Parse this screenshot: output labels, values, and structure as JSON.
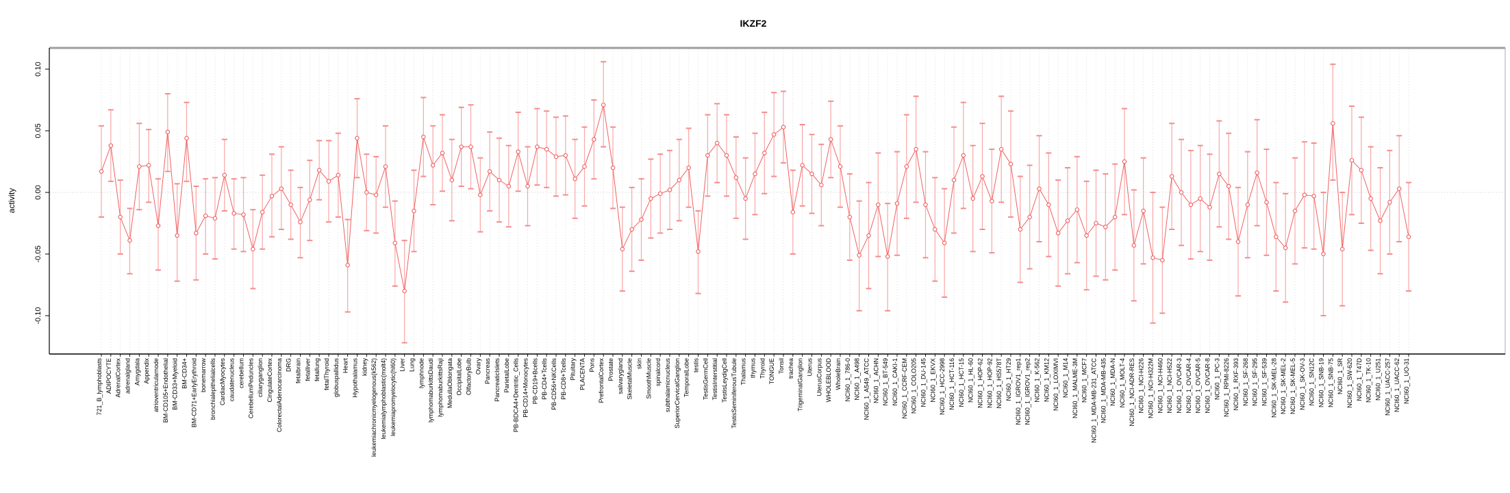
{
  "chart_data": {
    "type": "scatter",
    "subtype": "point-estimates-with-error-bars",
    "title": "IKZF2",
    "xlabel": "",
    "ylabel": "activity",
    "ylim": [
      -0.131,
      0.117
    ],
    "yticks": [
      {
        "v": 0.1,
        "label": "0.10"
      },
      {
        "v": 0.05,
        "label": "0.05"
      },
      {
        "v": 0.0,
        "label": "0.00"
      },
      {
        "v": -0.05,
        "label": "-0.05"
      },
      {
        "v": -0.1,
        "label": "-0.10"
      }
    ],
    "grid": {
      "vertical_dotted_per_category": true,
      "zero_line_dotted": true
    },
    "legend": "none",
    "point_color": "#f15f5f",
    "line_color": "#f15f5f",
    "errorbar_color": "#f8a6a6",
    "errorbar_cap_color": "#f58b8b",
    "categories": [
      "721_B_lymphoblasts",
      "ADIPOCYTE",
      "AdrenalCortex",
      "adrenalgland",
      "Amygdala",
      "Appendix",
      "atrioventricularnode",
      "BM-CD105+Endothelial",
      "BM-CD33+Myeloid",
      "BM-CD34+",
      "BM-CD71+EarlyErythroid",
      "bonemarrow",
      "bronchialepithelialcells",
      "CardiacMyocytes",
      "caudatenucleus",
      "cerebellum",
      "CerebellumPeduncles",
      "ciliaryganglion",
      "CingulateCortex",
      "ColorectalAdenocarcinoma",
      "DRG",
      "fetalbrain",
      "fetalliver",
      "fetallung",
      "fetalThyroid",
      "globuspallidus",
      "Heart",
      "Hypothalamus",
      "kidney",
      "leukemiachronicmyelogenous(k562)",
      "leukemialymphoblastic(molt4)",
      "leukemiapromyelocytic(hl60)",
      "Liver",
      "Lung",
      "lymphnode",
      "lymphomaburkittsDaudi",
      "lymphomaburkittsRaji",
      "MedullaOblongata",
      "OccipitalLobe",
      "OlfactoryBulb",
      "Ovary",
      "Pancreas",
      "PancreaticIslets",
      "ParietalLobe",
      "PB-BDCA4+Dentritic_Cells",
      "PB-CD14+Monocytes",
      "PB-CD19+Bcells",
      "PB-CD4+Tcells",
      "PB-CD56+NKCells",
      "PB-CD8+Tcells",
      "Pituitary",
      "PLACENTA",
      "Pons",
      "PrefrontalCortex",
      "Prostate",
      "salivarygland",
      "SkeletalMuscle",
      "skin",
      "SmoothMuscle",
      "spinalcord",
      "subthalamicnucleus",
      "SuperiorCervicalGanglion",
      "TemporalLobe",
      "testis",
      "TestisGermCell",
      "TestisInterstitial",
      "TestisLeydigCell",
      "TestisSeminiferousTubule",
      "Thalamus",
      "thymus",
      "Thyroid",
      "TONGUE",
      "Tonsil",
      "trachea",
      "TrigeminalGanglion",
      "Uterus",
      "UterusCorpus",
      "WHOLEBLOOD",
      "WholeBrain",
      "NCI60_1_786-0",
      "NCI60_1_A498",
      "NCI60_1_A549_ATCC",
      "NCI60_1_ACHN",
      "NCI60_1_BT-549",
      "NCI60_1_CAKI-1",
      "NCI60_1_CCRF-CEM",
      "NCI60_1_COLO205",
      "NCI60_1_DU-145",
      "NCI60_1_EKVX",
      "NCI60_1_HCC-2998",
      "NCI60_1_HCT-116",
      "NCI60_1_HCT-15",
      "NCI60_1_HL-60",
      "NCI60_1_HOP-62",
      "NCI60_1_HOP-92",
      "NCI60_1_HS578T",
      "NCI60_1_HT29",
      "NCI60_1_IGROV1_rep1",
      "NCI60_1_IGROV1_rep2",
      "NCI60_1_K-562",
      "NCI60_1_KM12",
      "NCI60_1_LOXIMVI",
      "NCI60_1_M14",
      "NCI60_1_MALME-3M",
      "NCI60_1_MCF7",
      "NCI60_1_MDA-MB-231_ATCC",
      "NCI60_1_MDA-MB-435",
      "NCI60_1_MDA-N",
      "NCI60_1_MOLT-4",
      "NCI60_1_NCI-ADR-RES",
      "NCI60_1_NCI-H226",
      "NCI60_1_NCI-H322M",
      "NCI60_1_NCI-H460",
      "NCI60_1_NCI-H522",
      "NCI60_1_OVCAR-3",
      "NCI60_1_OVCAR-4",
      "NCI60_1_OVCAR-5",
      "NCI60_1_OVCAR-8",
      "NCI60_1_PC-3",
      "NCI60_1_RPMI-8226",
      "NCI60_1_RXF-393",
      "NCI60_1_SF-268",
      "NCI60_1_SF-295",
      "NCI60_1_SF-539",
      "NCI60_1_SK-MEL-28",
      "NCI60_1_SK-MEL-2",
      "NCI60_1_SK-MEL-5",
      "NCI60_1_SK-OV-3",
      "NCI60_1_SN12C",
      "NCI60_1_SNB-19",
      "NCI60_1_SNB-75",
      "NCI60_1_SR",
      "NCI60_1_SW-620",
      "NCI60_1_T47D",
      "NCI60_1_TK-10",
      "NCI60_1_U251",
      "NCI60_1_UACC-257",
      "NCI60_1_UACC-62",
      "NCI60_1_UO-31"
    ],
    "values": [
      0.017,
      0.038,
      -0.02,
      -0.039,
      0.021,
      0.022,
      -0.027,
      0.049,
      -0.035,
      0.044,
      -0.033,
      -0.019,
      -0.021,
      0.014,
      -0.017,
      -0.018,
      -0.046,
      -0.016,
      -0.003,
      0.003,
      -0.01,
      -0.024,
      -0.006,
      0.018,
      0.009,
      0.014,
      -0.059,
      0.044,
      0.0,
      -0.002,
      0.021,
      -0.041,
      -0.08,
      -0.015,
      0.045,
      0.022,
      0.032,
      0.01,
      0.037,
      0.037,
      -0.002,
      0.017,
      0.01,
      0.005,
      0.033,
      0.005,
      0.037,
      0.035,
      0.029,
      0.03,
      0.011,
      0.021,
      0.043,
      0.071,
      0.02,
      -0.046,
      -0.03,
      -0.022,
      -0.005,
      -0.001,
      0.002,
      0.01,
      0.02,
      -0.048,
      0.03,
      0.04,
      0.03,
      0.012,
      -0.005,
      0.015,
      0.032,
      0.047,
      0.053,
      -0.016,
      0.022,
      0.015,
      0.006,
      0.043,
      0.021,
      -0.02,
      -0.051,
      -0.035,
      -0.01,
      -0.052,
      -0.009,
      0.021,
      0.035,
      -0.01,
      -0.03,
      -0.041,
      0.01,
      0.03,
      -0.005,
      0.013,
      -0.007,
      0.035,
      0.023,
      -0.03,
      -0.02,
      0.003,
      -0.01,
      -0.033,
      -0.023,
      -0.014,
      -0.035,
      -0.025,
      -0.028,
      -0.02,
      0.025,
      -0.043,
      -0.015,
      -0.053,
      -0.055,
      0.013,
      0.0,
      -0.01,
      -0.005,
      -0.012,
      0.015,
      0.005,
      -0.04,
      -0.01,
      0.016,
      -0.008,
      -0.036,
      -0.045,
      -0.015,
      -0.002,
      -0.003,
      -0.05,
      0.056,
      -0.046,
      0.026,
      0.018,
      -0.005,
      -0.023,
      -0.008,
      0.003,
      -0.036
    ],
    "ci_low": [
      -0.02,
      0.009,
      -0.05,
      -0.066,
      -0.014,
      -0.008,
      -0.063,
      0.017,
      -0.072,
      0.009,
      -0.071,
      -0.05,
      -0.054,
      -0.015,
      -0.046,
      -0.048,
      -0.078,
      -0.046,
      -0.036,
      -0.03,
      -0.038,
      -0.053,
      -0.039,
      -0.006,
      -0.024,
      -0.02,
      -0.097,
      0.012,
      -0.031,
      -0.033,
      -0.012,
      -0.076,
      -0.122,
      -0.048,
      0.013,
      -0.01,
      0.001,
      -0.023,
      0.005,
      0.003,
      -0.032,
      -0.015,
      -0.024,
      -0.028,
      0.001,
      -0.027,
      0.006,
      0.004,
      -0.003,
      -0.002,
      -0.021,
      -0.011,
      0.011,
      0.037,
      -0.013,
      -0.08,
      -0.064,
      -0.055,
      -0.037,
      -0.033,
      -0.03,
      -0.023,
      -0.012,
      -0.082,
      -0.003,
      0.008,
      -0.003,
      -0.021,
      -0.038,
      -0.018,
      -0.001,
      0.013,
      0.024,
      -0.05,
      -0.011,
      -0.017,
      -0.027,
      0.012,
      -0.012,
      -0.055,
      -0.096,
      -0.078,
      -0.052,
      -0.096,
      -0.051,
      -0.021,
      -0.008,
      -0.053,
      -0.072,
      -0.085,
      -0.033,
      -0.013,
      -0.048,
      -0.03,
      -0.049,
      -0.008,
      -0.02,
      -0.073,
      -0.062,
      -0.04,
      -0.052,
      -0.076,
      -0.066,
      -0.057,
      -0.079,
      -0.068,
      -0.071,
      -0.063,
      -0.018,
      -0.088,
      -0.058,
      -0.106,
      -0.098,
      -0.03,
      -0.043,
      -0.054,
      -0.048,
      -0.055,
      -0.028,
      -0.038,
      -0.084,
      -0.053,
      -0.027,
      -0.051,
      -0.08,
      -0.089,
      -0.058,
      -0.045,
      -0.046,
      -0.1,
      0.01,
      -0.092,
      -0.018,
      -0.025,
      -0.047,
      -0.066,
      -0.05,
      -0.04,
      -0.08
    ],
    "ci_high": [
      0.054,
      0.067,
      0.01,
      -0.013,
      0.056,
      0.051,
      0.011,
      0.08,
      0.007,
      0.073,
      0.005,
      0.011,
      0.012,
      0.043,
      0.011,
      0.012,
      -0.014,
      0.014,
      0.031,
      0.037,
      0.018,
      0.004,
      0.026,
      0.042,
      0.042,
      0.048,
      -0.022,
      0.076,
      0.031,
      0.029,
      0.054,
      -0.007,
      -0.039,
      0.018,
      0.077,
      0.054,
      0.063,
      0.043,
      0.069,
      0.071,
      0.028,
      0.049,
      0.044,
      0.038,
      0.065,
      0.037,
      0.068,
      0.066,
      0.061,
      0.062,
      0.043,
      0.053,
      0.075,
      0.106,
      0.053,
      -0.012,
      0.004,
      0.011,
      0.027,
      0.031,
      0.034,
      0.043,
      0.052,
      -0.015,
      0.063,
      0.072,
      0.063,
      0.045,
      0.028,
      0.048,
      0.065,
      0.081,
      0.082,
      0.018,
      0.055,
      0.047,
      0.039,
      0.074,
      0.054,
      0.015,
      -0.007,
      0.008,
      0.032,
      -0.009,
      0.033,
      0.063,
      0.078,
      0.033,
      0.012,
      0.003,
      0.053,
      0.073,
      0.038,
      0.056,
      0.035,
      0.078,
      0.066,
      0.013,
      0.022,
      0.046,
      0.032,
      0.01,
      0.02,
      0.029,
      0.009,
      0.018,
      0.015,
      0.023,
      0.068,
      0.002,
      0.028,
      0.0,
      -0.012,
      0.056,
      0.043,
      0.034,
      0.038,
      0.031,
      0.058,
      0.048,
      0.004,
      0.033,
      0.059,
      0.035,
      0.008,
      -0.001,
      0.028,
      0.041,
      0.04,
      0.0,
      0.104,
      0.0,
      0.07,
      0.061,
      0.037,
      0.02,
      0.034,
      0.046,
      0.008
    ]
  }
}
